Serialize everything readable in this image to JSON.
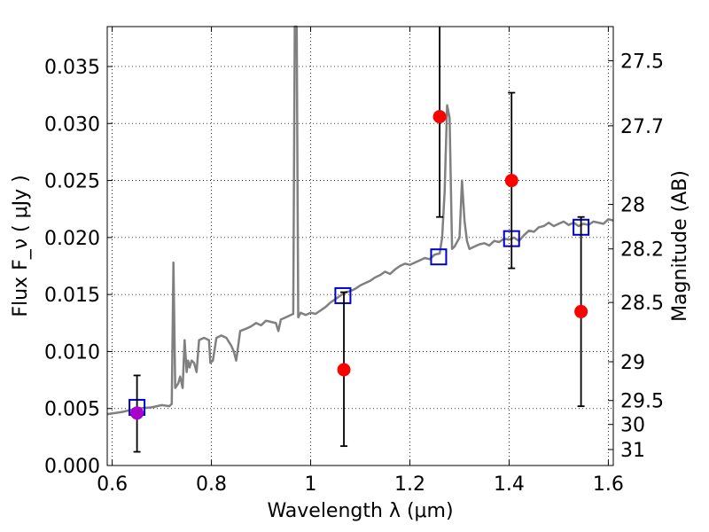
{
  "chart_data": {
    "type": "scatter",
    "xlabel": "Wavelength  λ (μm)",
    "ylabel": "Flux  F_ν ( μJy )",
    "y2label": "Magnitude (AB)",
    "xlim": [
      0.59,
      1.61
    ],
    "ylim": [
      0.0,
      0.0385
    ],
    "grid": true,
    "x_ticks": [
      {
        "value": 0.6,
        "label": "0.6"
      },
      {
        "value": 0.8,
        "label": "0.8"
      },
      {
        "value": 1.0,
        "label": "1"
      },
      {
        "value": 1.2,
        "label": "1.2"
      },
      {
        "value": 1.4,
        "label": "1.4"
      },
      {
        "value": 1.6,
        "label": "1.6"
      }
    ],
    "y_ticks": [
      {
        "value": 0.0,
        "label": "0.000"
      },
      {
        "value": 0.005,
        "label": "0.005"
      },
      {
        "value": 0.01,
        "label": "0.010"
      },
      {
        "value": 0.015,
        "label": "0.015"
      },
      {
        "value": 0.02,
        "label": "0.020"
      },
      {
        "value": 0.025,
        "label": "0.025"
      },
      {
        "value": 0.03,
        "label": "0.030"
      },
      {
        "value": 0.035,
        "label": "0.035"
      }
    ],
    "y2_ticks": [
      {
        "flux": 0.0355,
        "label": "27.5"
      },
      {
        "flux": 0.0298,
        "label": "27.7"
      },
      {
        "flux": 0.0229,
        "label": "28"
      },
      {
        "flux": 0.019,
        "label": "28.2"
      },
      {
        "flux": 0.0143,
        "label": "28.5"
      },
      {
        "flux": 0.0091,
        "label": "29"
      },
      {
        "flux": 0.0057,
        "label": "29.5"
      },
      {
        "flux": 0.0036,
        "label": "30"
      },
      {
        "flux": 0.0014,
        "label": "31"
      }
    ],
    "series": [
      {
        "kind": "line",
        "color": "#808080",
        "points": [
          [
            0.59,
            0.0045
          ],
          [
            0.62,
            0.0047
          ],
          [
            0.65,
            0.005
          ],
          [
            0.68,
            0.0051
          ],
          [
            0.7,
            0.0053
          ],
          [
            0.715,
            0.0052
          ],
          [
            0.72,
            0.0054
          ],
          [
            0.7235,
            0.0178
          ],
          [
            0.727,
            0.0068
          ],
          [
            0.733,
            0.0072
          ],
          [
            0.737,
            0.0078
          ],
          [
            0.742,
            0.0068
          ],
          [
            0.746,
            0.011
          ],
          [
            0.75,
            0.0082
          ],
          [
            0.753,
            0.0092
          ],
          [
            0.756,
            0.0086
          ],
          [
            0.76,
            0.0092
          ],
          [
            0.765,
            0.009
          ],
          [
            0.77,
            0.0082
          ],
          [
            0.775,
            0.011
          ],
          [
            0.785,
            0.0112
          ],
          [
            0.795,
            0.011
          ],
          [
            0.798,
            0.009
          ],
          [
            0.803,
            0.0092
          ],
          [
            0.81,
            0.0112
          ],
          [
            0.82,
            0.0114
          ],
          [
            0.83,
            0.0112
          ],
          [
            0.84,
            0.0105
          ],
          [
            0.845,
            0.01
          ],
          [
            0.85,
            0.0092
          ],
          [
            0.858,
            0.0118
          ],
          [
            0.87,
            0.012
          ],
          [
            0.88,
            0.0122
          ],
          [
            0.89,
            0.0125
          ],
          [
            0.9,
            0.0123
          ],
          [
            0.91,
            0.0127
          ],
          [
            0.92,
            0.0126
          ],
          [
            0.93,
            0.0125
          ],
          [
            0.935,
            0.0118
          ],
          [
            0.94,
            0.0128
          ],
          [
            0.95,
            0.013
          ],
          [
            0.96,
            0.0132
          ],
          [
            0.965,
            0.0133
          ],
          [
            0.968,
            0.0385
          ],
          [
            0.972,
            0.0385
          ],
          [
            0.975,
            0.013
          ],
          [
            0.98,
            0.0134
          ],
          [
            0.99,
            0.0132
          ],
          [
            1.0,
            0.0134
          ],
          [
            1.01,
            0.0133
          ],
          [
            1.02,
            0.0136
          ],
          [
            1.03,
            0.0139
          ],
          [
            1.04,
            0.0143
          ],
          [
            1.05,
            0.0146
          ],
          [
            1.06,
            0.0149
          ],
          [
            1.07,
            0.0152
          ],
          [
            1.08,
            0.0153
          ],
          [
            1.09,
            0.0155
          ],
          [
            1.1,
            0.0158
          ],
          [
            1.11,
            0.016
          ],
          [
            1.12,
            0.0162
          ],
          [
            1.13,
            0.0165
          ],
          [
            1.14,
            0.0167
          ],
          [
            1.15,
            0.017
          ],
          [
            1.16,
            0.0168
          ],
          [
            1.17,
            0.0172
          ],
          [
            1.18,
            0.0175
          ],
          [
            1.19,
            0.0177
          ],
          [
            1.2,
            0.0176
          ],
          [
            1.21,
            0.0178
          ],
          [
            1.22,
            0.018
          ],
          [
            1.23,
            0.0182
          ],
          [
            1.24,
            0.0181
          ],
          [
            1.25,
            0.0185
          ],
          [
            1.26,
            0.0186
          ],
          [
            1.265,
            0.02
          ],
          [
            1.27,
            0.024
          ],
          [
            1.275,
            0.0316
          ],
          [
            1.28,
            0.0305
          ],
          [
            1.285,
            0.019
          ],
          [
            1.29,
            0.0192
          ],
          [
            1.295,
            0.0196
          ],
          [
            1.3,
            0.02
          ],
          [
            1.305,
            0.025
          ],
          [
            1.31,
            0.0215
          ],
          [
            1.315,
            0.0197
          ],
          [
            1.32,
            0.019
          ],
          [
            1.33,
            0.0192
          ],
          [
            1.34,
            0.0194
          ],
          [
            1.35,
            0.0195
          ],
          [
            1.36,
            0.0193
          ],
          [
            1.37,
            0.0197
          ],
          [
            1.38,
            0.0196
          ],
          [
            1.39,
            0.0199
          ],
          [
            1.4,
            0.0198
          ],
          [
            1.41,
            0.02
          ],
          [
            1.42,
            0.0197
          ],
          [
            1.43,
            0.0202
          ],
          [
            1.44,
            0.0206
          ],
          [
            1.45,
            0.0205
          ],
          [
            1.46,
            0.0209
          ],
          [
            1.47,
            0.021
          ],
          [
            1.48,
            0.0213
          ],
          [
            1.49,
            0.021
          ],
          [
            1.5,
            0.0212
          ],
          [
            1.51,
            0.0214
          ],
          [
            1.52,
            0.0211
          ],
          [
            1.53,
            0.0213
          ],
          [
            1.54,
            0.021
          ],
          [
            1.55,
            0.0212
          ],
          [
            1.56,
            0.0211
          ],
          [
            1.57,
            0.0214
          ],
          [
            1.58,
            0.0213
          ],
          [
            1.59,
            0.0212
          ],
          [
            1.6,
            0.0216
          ],
          [
            1.61,
            0.0215
          ]
        ]
      },
      {
        "kind": "markers",
        "marker": "square",
        "color": "#0000cc",
        "points": [
          [
            0.65,
            0.0051
          ],
          [
            1.065,
            0.0149
          ],
          [
            1.258,
            0.0183
          ],
          [
            1.405,
            0.0199
          ],
          [
            1.545,
            0.0209
          ]
        ]
      },
      {
        "kind": "markers",
        "marker": "circle",
        "color": "#ff0000",
        "points": [
          {
            "x": 1.067,
            "y": 0.0084,
            "ylo": 0.0017,
            "yhi": 0.0152
          },
          {
            "x": 1.26,
            "y": 0.0306,
            "ylo": 0.0218,
            "yhi": 0.04
          },
          {
            "x": 1.405,
            "y": 0.025,
            "ylo": 0.0173,
            "yhi": 0.0327
          },
          {
            "x": 1.545,
            "y": 0.0135,
            "ylo": 0.0052,
            "yhi": 0.0218
          }
        ]
      },
      {
        "kind": "markers",
        "marker": "circle",
        "color": "#aa00cc",
        "points": [
          {
            "x": 0.65,
            "y": 0.0046,
            "ylo": 0.0012,
            "yhi": 0.0079
          }
        ]
      }
    ]
  }
}
